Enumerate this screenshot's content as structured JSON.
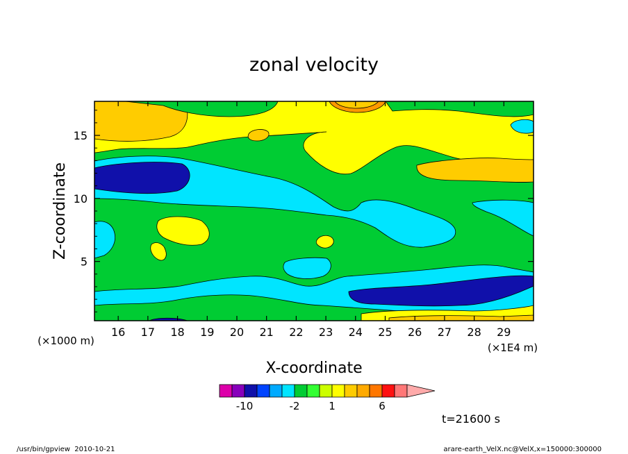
{
  "chart_data": {
    "type": "heatmap",
    "title": "zonal velocity",
    "xlabel": "X-coordinate",
    "ylabel": "Z-coordinate",
    "x_unit_left": "(×1000 m)",
    "x_unit_right": "(×1E4 m)",
    "x_ticks": [
      16,
      17,
      18,
      19,
      20,
      21,
      22,
      23,
      24,
      25,
      26,
      27,
      28,
      29
    ],
    "y_ticks": [
      5,
      10,
      15
    ],
    "xlim": [
      15.2,
      30
    ],
    "ylim": [
      0.3,
      17.7
    ],
    "colorbar": {
      "colors": [
        "#dd00aa",
        "#8800bb",
        "#1010aa",
        "#0044ff",
        "#00aaff",
        "#00e5ff",
        "#00cc33",
        "#33ff33",
        "#ccff00",
        "#ffff00",
        "#ffcc00",
        "#ffaa00",
        "#ff7700",
        "#ff1111",
        "#ff7777",
        "#ffaaaa"
      ],
      "labels": [
        {
          "value": "-10",
          "after_index": 1
        },
        {
          "value": "-2",
          "after_index": 5
        },
        {
          "value": "1",
          "after_index": 8
        },
        {
          "value": "6",
          "after_index": 12
        }
      ]
    },
    "time_label": "t=21600 s",
    "regions": [
      {
        "color": "#ffcc00",
        "label": "upper-left positive band",
        "x": [
          15.2,
          20.5
        ],
        "y": [
          13.5,
          17.7
        ]
      },
      {
        "color": "#1010aa",
        "label": "negative core left",
        "x": [
          15.2,
          18.3
        ],
        "y": [
          10.5,
          12.8
        ]
      },
      {
        "color": "#1010aa",
        "label": "negative core lower right",
        "x": [
          24,
          30
        ],
        "y": [
          1.5,
          3.8
        ]
      },
      {
        "color": "#ffcc00",
        "label": "positive patch right",
        "x": [
          25.8,
          30
        ],
        "y": [
          11,
          12.8
        ]
      },
      {
        "color": "#ff7700",
        "label": "strong positive top",
        "x": [
          23,
          24.3
        ],
        "y": [
          16.8,
          17.7
        ]
      }
    ]
  },
  "footer": {
    "left": "/usr/bin/gpview  2010-10-21",
    "right": "arare-earth_VelX.nc@VelX,x=150000:300000"
  }
}
